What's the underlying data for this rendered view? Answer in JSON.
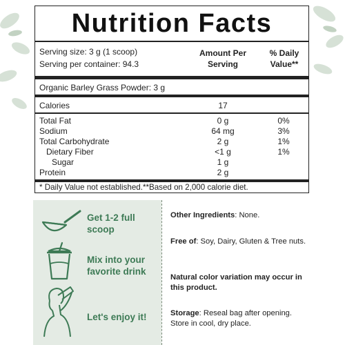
{
  "panel": {
    "title": "Nutrition Facts",
    "serving_size": "Serving size: 3 g (1 scoop)",
    "servings_per_container": "Serving per container: 94.3",
    "col_amount_line1": "Amount Per",
    "col_amount_line2": "Serving",
    "col_dv_line1": "% Daily",
    "col_dv_line2": "Value**",
    "ingredient": "Organic Barley Grass Powder: 3 g",
    "calories_label": "Calories",
    "calories_value": "17",
    "nutrients": [
      {
        "name": "Total Fat",
        "amount": "0 g",
        "dv": "0%"
      },
      {
        "name": "Sodium",
        "amount": "64 mg",
        "dv": "3%"
      },
      {
        "name": "Total Carbohydrate",
        "amount": "2 g",
        "dv": "1%"
      },
      {
        "name": "Dietary Fiber",
        "amount": "<1 g",
        "dv": "1%"
      },
      {
        "name": "Sugar",
        "amount": "1 g",
        "dv": ""
      },
      {
        "name": "Protein",
        "amount": "2 g",
        "dv": ""
      }
    ],
    "footnote": "* Daily Value not established.**Based on 2,000 calorie diet."
  },
  "steps": [
    {
      "line1": "Get 1-2 full",
      "line2": "scoop",
      "icon": "scoop-icon"
    },
    {
      "line1": "Mix into your",
      "line2": "favorite drink",
      "icon": "drink-cup-icon"
    },
    {
      "line1": "Let's enjoy it!",
      "line2": "",
      "icon": "woman-drinking-icon"
    }
  ],
  "info": {
    "other_label": "Other Ingredients",
    "other_text": ": None.",
    "free_label": "Free of",
    "free_text": ": Soy, Dairy, Gluten & Tree nuts.",
    "natural_text": "Natural color variation may occur in this product.",
    "storage_label": "Storage",
    "storage_text": ": Reseal bag after opening. Store in cool, dry place."
  },
  "colors": {
    "accent_green": "#3d7a55",
    "pane_bg": "#e4ebe4"
  }
}
